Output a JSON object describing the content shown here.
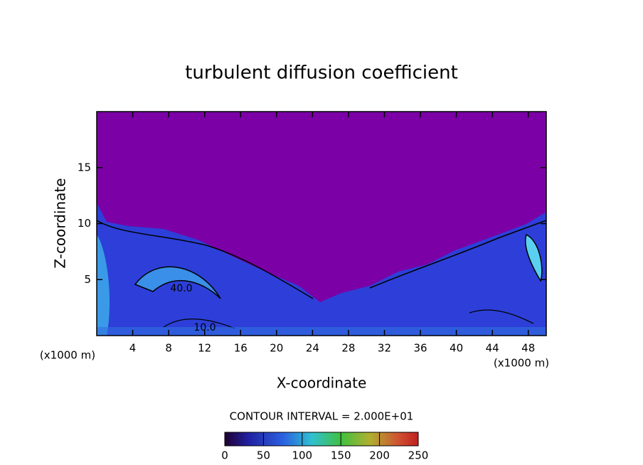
{
  "chart_data": {
    "type": "contour",
    "title": "turbulent diffusion coefficient",
    "x_label": "X-coordinate",
    "y_label": "Z-coordinate",
    "x_unit_label": "(x1000 m)",
    "y_unit_label": "(x1000 m)",
    "xlim": [
      0,
      50
    ],
    "xticks": [
      4,
      8,
      12,
      16,
      20,
      24,
      28,
      32,
      36,
      40,
      44,
      48
    ],
    "ylim": [
      0,
      20
    ],
    "yticks": [
      5,
      10,
      15
    ],
    "contour_labels": [
      "40.0",
      "10.0"
    ],
    "contour_interval_label": "CONTOUR INTERVAL = 2.000E+01",
    "colorbar": {
      "clim": [
        0,
        250
      ],
      "ticks": [
        0,
        50,
        100,
        150,
        200,
        250
      ]
    }
  }
}
